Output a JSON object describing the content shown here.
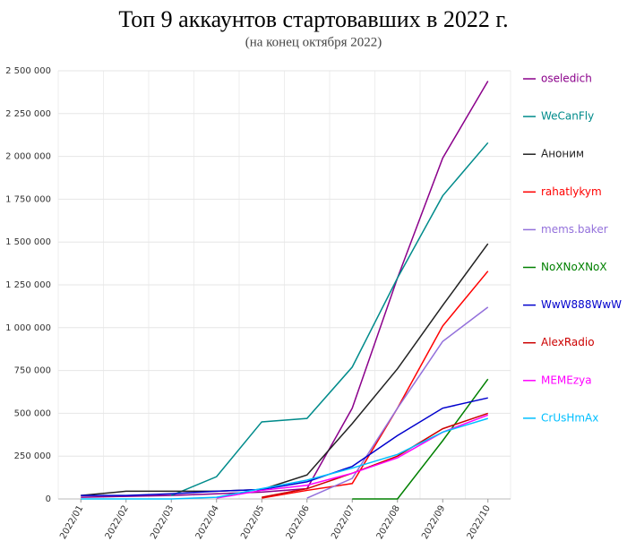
{
  "chart_data": {
    "type": "line",
    "title": "Топ 9 аккаунтов стартовавших в 2022 г.",
    "subtitle": "(на конец октября 2022)",
    "categories": [
      "2022/01",
      "2022/02",
      "2022/03",
      "2022/04",
      "2022/05",
      "2022/06",
      "2022/07",
      "2022/08",
      "2022/09",
      "2022/10"
    ],
    "ylim": [
      0,
      2500000
    ],
    "yticks": [
      0,
      {
        "value": 250000,
        "label": "250 000"
      },
      {
        "value": 500000,
        "label": "500 000"
      },
      {
        "value": 750000,
        "label": "750 000"
      },
      {
        "value": 1000000,
        "label": "1 000 000"
      },
      {
        "value": 1250000,
        "label": "1 250 000"
      },
      {
        "value": 1500000,
        "label": "1 500 000"
      },
      {
        "value": 1750000,
        "label": "1 750 000"
      },
      {
        "value": 2000000,
        "label": "2 000 000"
      },
      {
        "value": 2250000,
        "label": "2 250 000"
      },
      {
        "value": 2500000,
        "label": "2 500 000"
      }
    ],
    "grid": true,
    "series": [
      {
        "name": "oseledich",
        "color": "#8b008b",
        "values": [
          10000,
          15000,
          20000,
          30000,
          40000,
          60000,
          530000,
          1290000,
          1990000,
          2440000
        ]
      },
      {
        "name": "WeCanFly",
        "color": "#008b8b",
        "values": [
          null,
          null,
          20000,
          130000,
          450000,
          470000,
          770000,
          1290000,
          1770000,
          2080000
        ]
      },
      {
        "name": "Аноним",
        "color": "#222222",
        "values": [
          20000,
          45000,
          45000,
          45000,
          55000,
          140000,
          440000,
          760000,
          1130000,
          1490000
        ]
      },
      {
        "name": "rahatlykym",
        "color": "#ff0000",
        "values": [
          null,
          null,
          null,
          null,
          5000,
          50000,
          90000,
          530000,
          1010000,
          1330000
        ]
      },
      {
        "name": "mems.baker",
        "color": "#9370db",
        "values": [
          null,
          null,
          null,
          null,
          null,
          5000,
          120000,
          530000,
          920000,
          1120000
        ]
      },
      {
        "name": "NoXNoXNoX",
        "color": "#008000",
        "values": [
          null,
          null,
          null,
          null,
          null,
          null,
          0,
          0,
          340000,
          700000
        ]
      },
      {
        "name": "WwW888WwW",
        "color": "#0000cd",
        "values": [
          20000,
          20000,
          30000,
          45000,
          55000,
          100000,
          190000,
          370000,
          530000,
          590000
        ]
      },
      {
        "name": "AlexRadio",
        "color": "#cc0000",
        "values": [
          null,
          null,
          null,
          null,
          10000,
          60000,
          150000,
          250000,
          410000,
          500000
        ]
      },
      {
        "name": "MEMEzya",
        "color": "#ff00ff",
        "values": [
          null,
          null,
          null,
          5000,
          50000,
          80000,
          150000,
          240000,
          390000,
          490000
        ]
      },
      {
        "name": "CrUsHmAx",
        "color": "#00bfff",
        "values": [
          0,
          0,
          0,
          10000,
          60000,
          110000,
          180000,
          260000,
          390000,
          470000
        ]
      }
    ]
  }
}
